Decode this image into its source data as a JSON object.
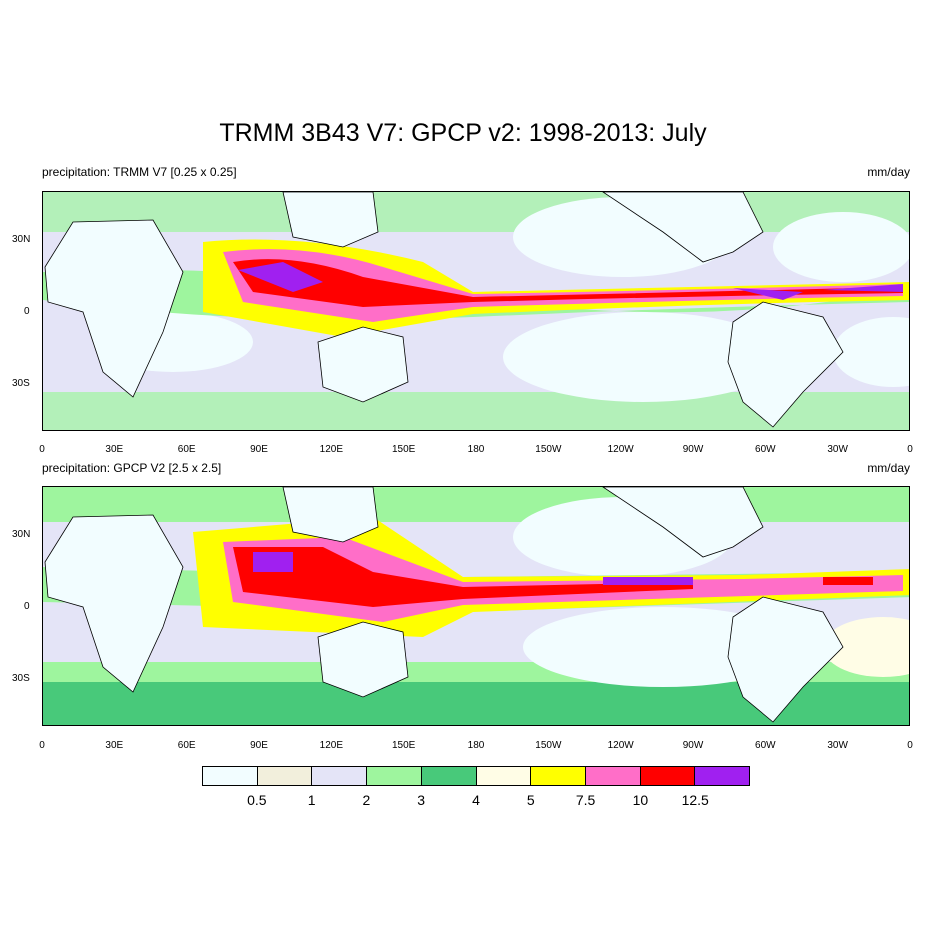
{
  "title": "TRMM 3B43 V7: GPCP v2: 1998-2013: July",
  "panels": [
    {
      "left_label": "precipitation: TRMM V7 [0.25 x 0.25]",
      "right_label": "mm/day"
    },
    {
      "left_label": "precipitation: GPCP V2 [2.5 x 2.5]",
      "right_label": "mm/day"
    }
  ],
  "lat_labels": [
    "30N",
    "0",
    "30S"
  ],
  "lon_labels": [
    "0",
    "30E",
    "60E",
    "90E",
    "120E",
    "150E",
    "180",
    "150W",
    "120W",
    "90W",
    "60W",
    "30W",
    "0"
  ],
  "colorbar": {
    "colors": [
      "#f2fdff",
      "#f2efdc",
      "#e4e4f7",
      "#9ef59e",
      "#48c97a",
      "#fffde6",
      "#ffff00",
      "#ff6ec8",
      "#ff0000",
      "#a020f0"
    ],
    "labels": [
      "0.5",
      "1",
      "2",
      "3",
      "4",
      "5",
      "7.5",
      "10",
      "12.5"
    ]
  }
}
